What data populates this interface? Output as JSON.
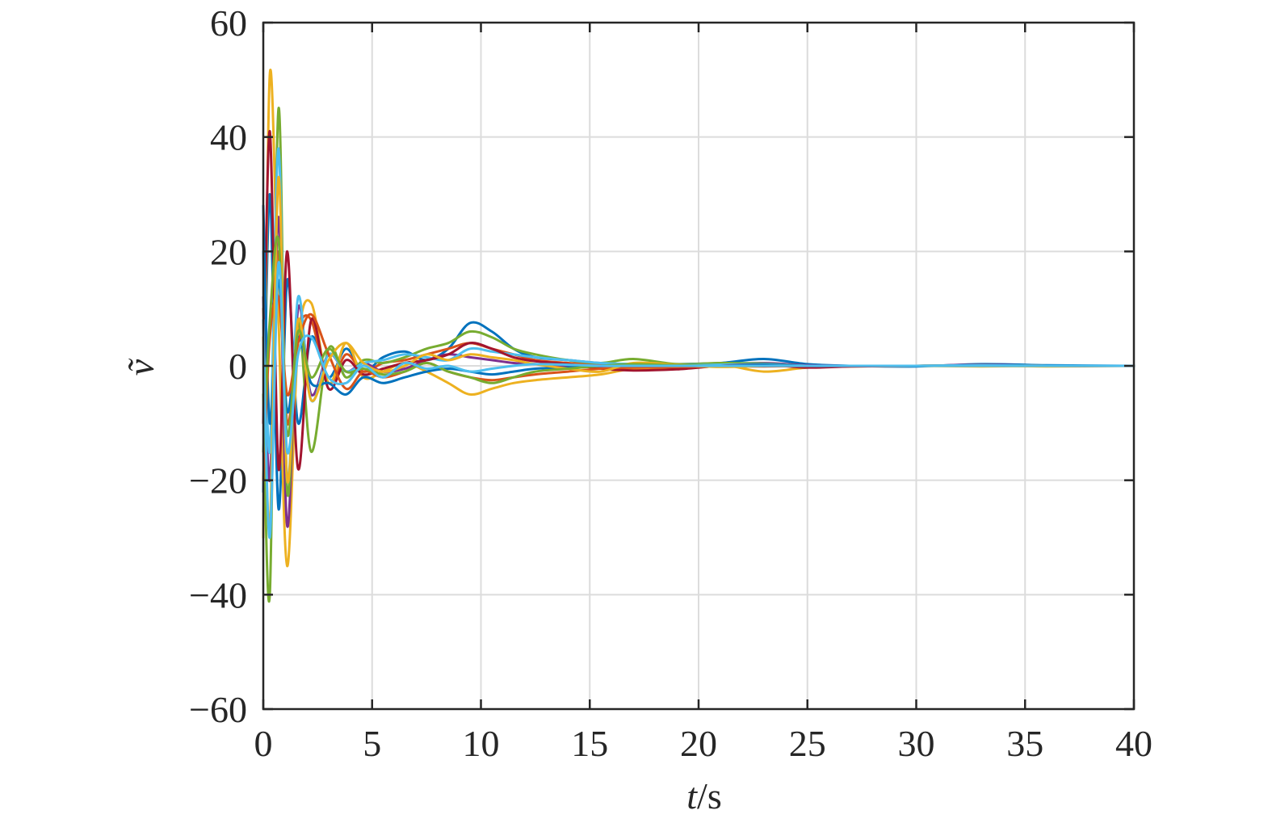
{
  "chart_data": {
    "type": "line",
    "title": "",
    "xlabel": {
      "var": "t",
      "sep": "/",
      "unit": "s"
    },
    "ylabel": "ṽ",
    "xlim": [
      0,
      40
    ],
    "ylim": [
      -60,
      60
    ],
    "xticks": [
      0,
      5,
      10,
      15,
      20,
      25,
      30,
      35,
      40
    ],
    "yticks": [
      -60,
      -40,
      -20,
      0,
      20,
      40,
      60
    ],
    "xtick_labels": [
      "0",
      "5",
      "10",
      "15",
      "20",
      "25",
      "30",
      "35",
      "40"
    ],
    "ytick_labels": [
      "−60",
      "−40",
      "−20",
      "0",
      "20",
      "40",
      "60"
    ],
    "grid": true,
    "legend": "none",
    "series": [
      {
        "color": "#0072bd",
        "x": [
          0,
          0.3,
          0.7,
          1.1,
          1.6,
          2.2,
          3,
          3.8,
          4.6,
          5.5,
          6.5,
          7.5,
          8.5,
          9.5,
          10.5,
          11.5,
          12.5,
          14,
          15.5,
          17,
          19,
          21,
          23,
          25,
          27,
          30,
          33,
          36,
          40
        ],
        "y": [
          -22,
          30,
          -25,
          15,
          -10,
          5,
          -2,
          3,
          -1,
          1.5,
          2.5,
          1,
          3,
          7.5,
          6,
          3,
          1.5,
          1,
          0.5,
          0.3,
          0.3,
          0.5,
          1.2,
          0.3,
          0,
          -0.1,
          0.3,
          0.1,
          0
        ]
      },
      {
        "color": "#d95319",
        "x": [
          0,
          0.3,
          0.7,
          1.1,
          1.6,
          2.2,
          3,
          3.8,
          4.6,
          5.5,
          6.5,
          7.5,
          8.5,
          9.5,
          10.5,
          11.5,
          12.5,
          14,
          15.5,
          17,
          19,
          21,
          23,
          25,
          27,
          30,
          33,
          36,
          40
        ],
        "y": [
          10,
          -15,
          20,
          -10,
          6,
          8,
          -3,
          2,
          -1,
          0.5,
          1,
          2,
          3,
          4,
          3,
          2,
          1,
          0.5,
          0.2,
          -0.5,
          -0.3,
          0.2,
          0.3,
          -0.2,
          0,
          0,
          0.1,
          0,
          0
        ]
      },
      {
        "color": "#edb120",
        "x": [
          0,
          0.3,
          0.7,
          1.1,
          1.6,
          2.2,
          3,
          3.8,
          4.6,
          5.5,
          6.5,
          7.5,
          8.5,
          9.5,
          10.5,
          11.5,
          12.5,
          14,
          15.5,
          17,
          19,
          21,
          23,
          25,
          27,
          30,
          33,
          36,
          40
        ],
        "y": [
          -30,
          51,
          8,
          -35,
          4,
          11,
          -3,
          4,
          -2,
          -1,
          0.5,
          -1,
          -3,
          -5,
          -4,
          -3,
          -2.5,
          -2,
          -1.5,
          -0.5,
          -0.2,
          0.2,
          -1,
          -0.3,
          -0.1,
          0,
          0.1,
          -0.1,
          0
        ]
      },
      {
        "color": "#7e2f8e",
        "x": [
          0,
          0.3,
          0.7,
          1.1,
          1.6,
          2.2,
          3,
          3.8,
          4.6,
          5.5,
          6.5,
          7.5,
          8.5,
          9.5,
          10.5,
          11.5,
          12.5,
          14,
          15.5,
          17,
          19,
          21,
          23,
          25,
          27,
          30,
          33,
          36,
          40
        ],
        "y": [
          12,
          -20,
          26,
          -28,
          10,
          -5,
          2,
          -1,
          0.5,
          -1,
          -0.5,
          1,
          2,
          1.5,
          1,
          0.5,
          0.3,
          0,
          -0.2,
          0,
          0.2,
          0.3,
          0.5,
          0.1,
          0,
          0,
          0.2,
          0,
          0
        ]
      },
      {
        "color": "#77ac30",
        "x": [
          0,
          0.3,
          0.7,
          1.1,
          1.6,
          2.2,
          3,
          3.8,
          4.6,
          5.5,
          6.5,
          7.5,
          8.5,
          9.5,
          10.5,
          11.5,
          12.5,
          14,
          15.5,
          17,
          19,
          21,
          23,
          25,
          27,
          30,
          33,
          36,
          40
        ],
        "y": [
          -5,
          -40,
          45,
          -22,
          8,
          -15,
          3,
          -2,
          1,
          0.5,
          1.5,
          3,
          4,
          6,
          5,
          3,
          2,
          1,
          0.5,
          1.2,
          0.3,
          0.5,
          0.4,
          0,
          0,
          0,
          0.1,
          0,
          0
        ]
      },
      {
        "color": "#4dbeee",
        "x": [
          0,
          0.3,
          0.7,
          1.1,
          1.6,
          2.2,
          3,
          3.8,
          4.6,
          5.5,
          6.5,
          7.5,
          8.5,
          9.5,
          10.5,
          11.5,
          12.5,
          14,
          15.5,
          17,
          19,
          21,
          23,
          25,
          27,
          30,
          33,
          36,
          40
        ],
        "y": [
          20,
          -15,
          38,
          -20,
          12,
          -6,
          2,
          -1,
          0.5,
          1,
          2,
          1.5,
          1,
          3,
          2.5,
          2,
          1.5,
          1,
          0.5,
          0.3,
          0.1,
          0.2,
          0.3,
          0,
          0,
          0,
          0.1,
          0,
          0
        ]
      },
      {
        "color": "#a2142f",
        "x": [
          0,
          0.3,
          0.7,
          1.1,
          1.6,
          2.2,
          3,
          3.8,
          4.6,
          5.5,
          6.5,
          7.5,
          8.5,
          9.5,
          10.5,
          11.5,
          12.5,
          14,
          15.5,
          17,
          19,
          21,
          23,
          25,
          27,
          30,
          33,
          36,
          40
        ],
        "y": [
          -10,
          41,
          -18,
          20,
          -18,
          8,
          -4,
          1,
          -1.5,
          -0.5,
          0.5,
          1,
          2,
          4,
          3,
          1.5,
          0.8,
          0.3,
          -0.5,
          -0.8,
          -0.6,
          0,
          0.2,
          -0.3,
          -0.1,
          0,
          0,
          0,
          0
        ]
      },
      {
        "color": "#0072bd",
        "x": [
          0,
          0.3,
          0.7,
          1.1,
          1.6,
          2.2,
          3,
          3.8,
          4.6,
          5.5,
          6.5,
          7.5,
          8.5,
          9.5,
          10.5,
          11.5,
          12.5,
          14,
          15.5,
          17,
          19,
          21,
          23,
          25,
          27,
          30,
          33,
          36,
          40
        ],
        "y": [
          28,
          -10,
          15,
          -8,
          5,
          -3,
          -3,
          -5,
          -2,
          -3,
          -2,
          -1,
          -0.5,
          -1,
          -1.5,
          -1,
          -0.5,
          -0.3,
          0,
          0.2,
          0,
          0,
          0.2,
          0,
          0,
          0,
          0,
          0,
          0
        ]
      },
      {
        "color": "#d95319",
        "x": [
          0,
          0.3,
          0.7,
          1.1,
          1.6,
          2.2,
          3,
          3.8,
          4.6,
          5.5,
          6.5,
          7.5,
          8.5,
          9.5,
          10.5,
          11.5,
          12.5,
          14,
          15.5,
          17,
          19,
          21,
          23,
          25,
          27,
          30,
          33,
          36,
          40
        ],
        "y": [
          -20,
          5,
          12,
          -5,
          4,
          9,
          2,
          -4,
          -1,
          -2,
          -1,
          0.5,
          -1,
          -2,
          -2.5,
          -2,
          -1.5,
          -1,
          -0.5,
          -0.3,
          -0.2,
          -0.1,
          -0.1,
          0,
          0,
          0,
          0,
          0,
          0
        ]
      },
      {
        "color": "#edb120",
        "x": [
          0,
          0.3,
          0.7,
          1.1,
          1.6,
          2.2,
          3,
          3.8,
          4.6,
          5.5,
          6.5,
          7.5,
          8.5,
          9.5,
          10.5,
          11.5,
          12.5,
          14,
          15.5,
          17,
          19,
          21,
          23,
          25,
          27,
          30,
          33,
          36,
          40
        ],
        "y": [
          5,
          -28,
          33,
          -20,
          8,
          -6,
          1,
          4,
          0.5,
          -1,
          0,
          2,
          1,
          2,
          1.5,
          1,
          0.3,
          -0.5,
          -1,
          0.5,
          0.2,
          -0.2,
          0,
          0,
          0,
          0,
          -0.1,
          0,
          0
        ]
      },
      {
        "color": "#77ac30",
        "x": [
          0,
          0.3,
          0.7,
          1.1,
          1.6,
          2.2,
          3,
          3.8,
          4.6,
          5.5,
          6.5,
          7.5,
          8.5,
          9.5,
          10.5,
          11.5,
          12.5,
          14,
          15.5,
          17,
          19,
          21,
          23,
          25,
          27,
          30,
          33,
          36,
          40
        ],
        "y": [
          -15,
          8,
          22,
          -12,
          6,
          -2,
          3,
          -1,
          -0.5,
          -1.5,
          -1,
          0.5,
          -1,
          -2,
          -3,
          -2,
          -1,
          -0.5,
          0,
          0.3,
          0.1,
          0,
          0,
          0,
          0,
          0,
          0,
          0,
          0
        ]
      },
      {
        "color": "#4dbeee",
        "x": [
          0,
          0.3,
          0.7,
          1.1,
          1.6,
          2.2,
          3,
          3.8,
          4.6,
          5.5,
          6.5,
          7.5,
          8.5,
          9.5,
          10.5,
          11.5,
          12.5,
          14,
          15.5,
          17,
          19,
          21,
          23,
          25,
          27,
          30,
          33,
          36,
          40
        ],
        "y": [
          8,
          -30,
          18,
          -15,
          2,
          5,
          -2,
          -3,
          0,
          -2,
          0.5,
          -0.5,
          0,
          -1,
          -0.5,
          0,
          0.3,
          0.2,
          0,
          0,
          0,
          0,
          0,
          0,
          0,
          0,
          0,
          0,
          0
        ]
      }
    ]
  }
}
